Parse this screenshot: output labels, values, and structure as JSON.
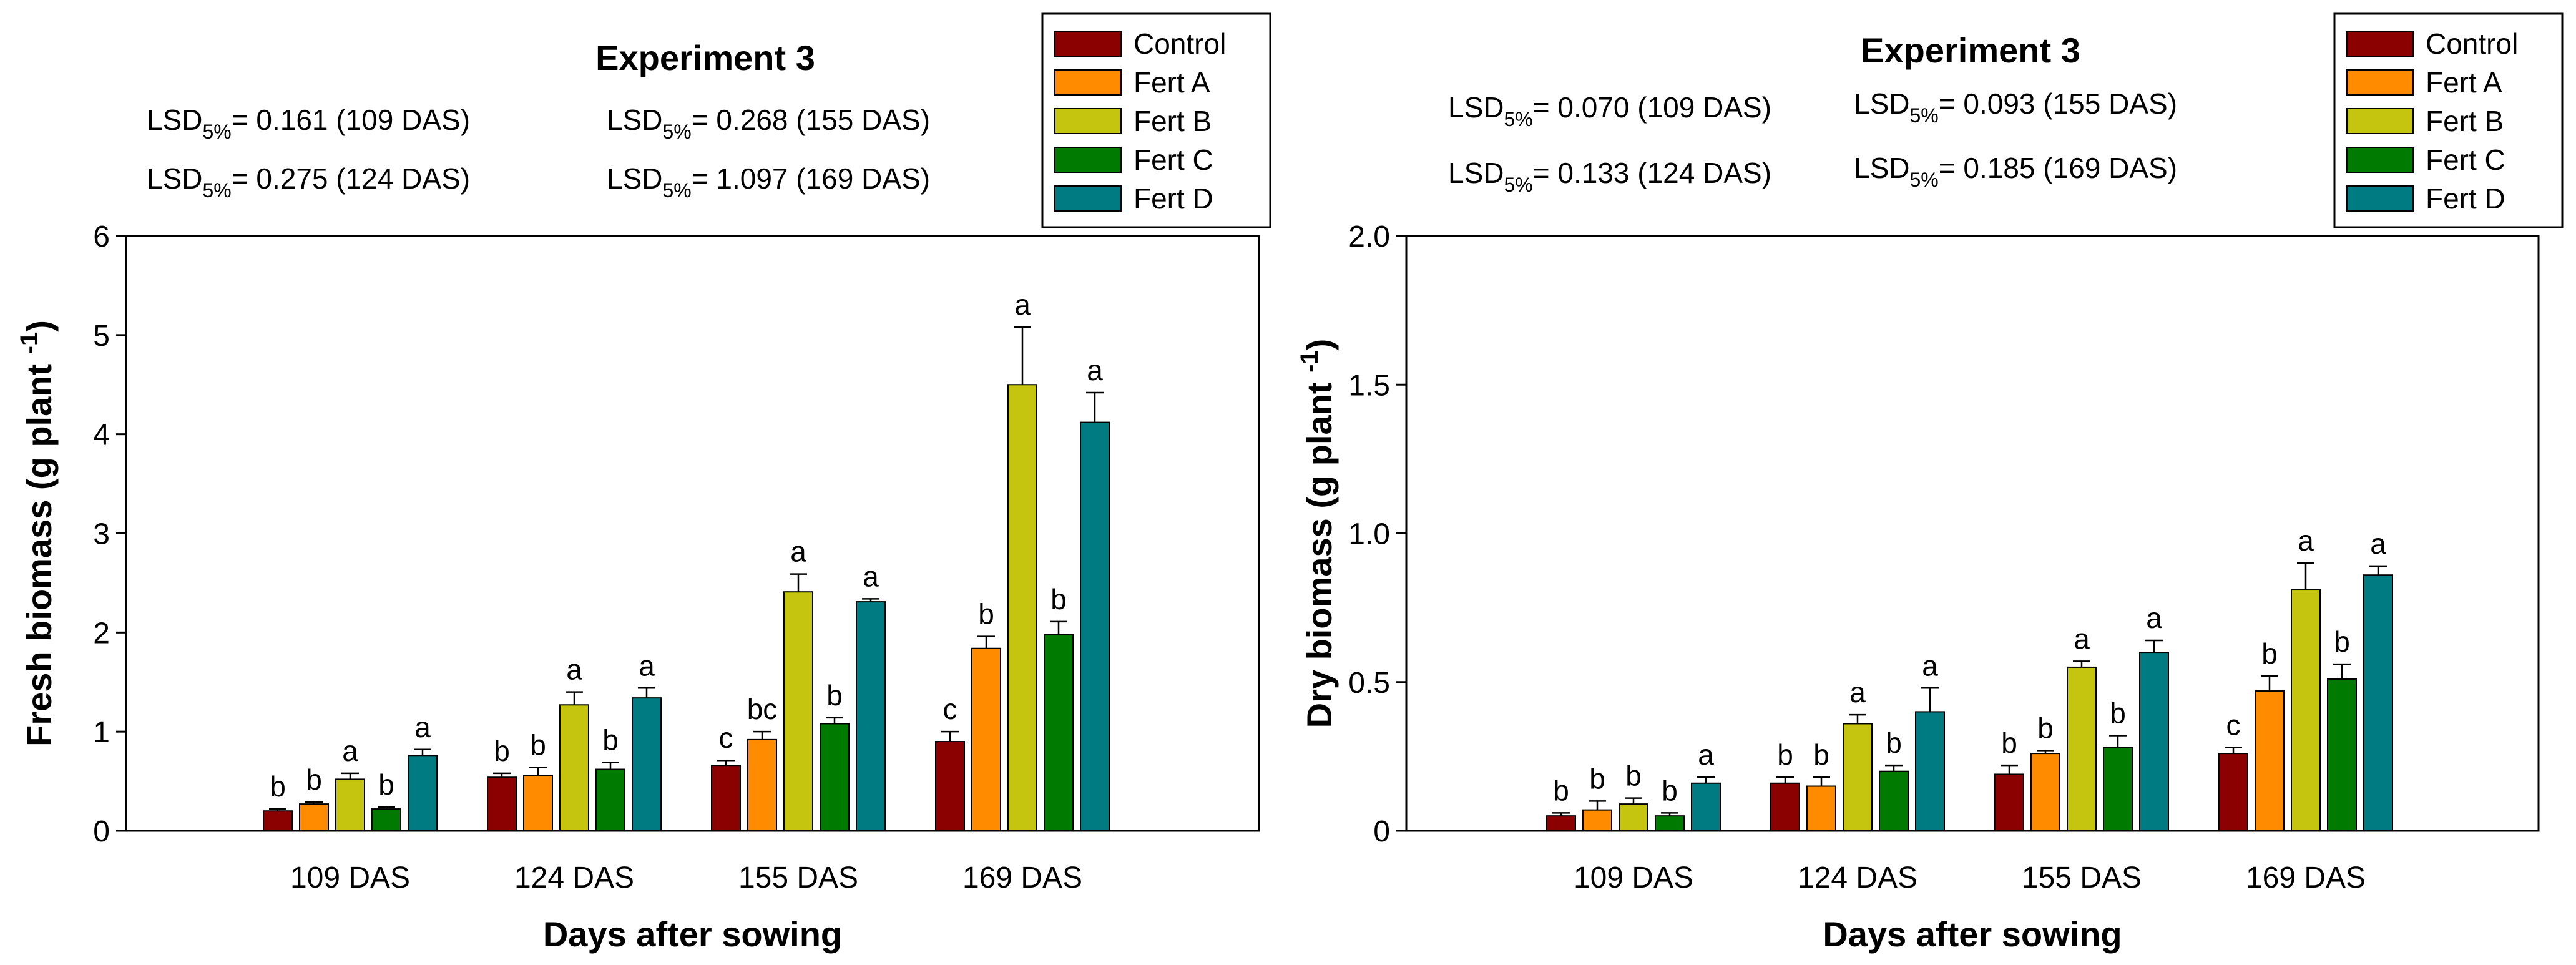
{
  "chart_data": [
    {
      "type": "bar",
      "title": "Experiment 3",
      "xlabel": "Days after sowing",
      "ylabel": "Fresh biomass (g plant",
      "ylabel_sup": "-1",
      "ylabel_close": ")",
      "ylim": [
        0,
        6
      ],
      "yticks": [
        0,
        1,
        2,
        3,
        4,
        5,
        6
      ],
      "ytick_labels": [
        "0",
        "1",
        "2",
        "3",
        "4",
        "5",
        "6"
      ],
      "categories": [
        "109 DAS",
        "124 DAS",
        "155 DAS",
        "169 DAS"
      ],
      "series": [
        {
          "name": "Control",
          "color": "#8b0000",
          "values": [
            0.2,
            0.54,
            0.66,
            0.9
          ],
          "errors": [
            0.02,
            0.04,
            0.05,
            0.1
          ],
          "letters": [
            "b",
            "b",
            "c",
            "c"
          ]
        },
        {
          "name": "Fert A",
          "color": "#ff8c00",
          "values": [
            0.27,
            0.56,
            0.92,
            1.84
          ],
          "errors": [
            0.02,
            0.08,
            0.08,
            0.12
          ],
          "letters": [
            "b",
            "b",
            "bc",
            "b"
          ]
        },
        {
          "name": "Fert B",
          "color": "#c5c50f",
          "values": [
            0.52,
            1.27,
            2.41,
            4.5
          ],
          "errors": [
            0.06,
            0.13,
            0.18,
            0.58
          ],
          "letters": [
            "a",
            "a",
            "a",
            "a"
          ]
        },
        {
          "name": "Fert C",
          "color": "#007a00",
          "values": [
            0.22,
            0.62,
            1.08,
            1.98
          ],
          "errors": [
            0.02,
            0.07,
            0.06,
            0.13
          ],
          "letters": [
            "b",
            "b",
            "b",
            "b"
          ]
        },
        {
          "name": "Fert D",
          "color": "#007b82",
          "values": [
            0.76,
            1.34,
            2.31,
            4.12
          ],
          "errors": [
            0.06,
            0.1,
            0.03,
            0.3
          ],
          "letters": [
            "a",
            "a",
            "a",
            "a"
          ]
        }
      ],
      "annotations": [
        {
          "prefix": "LSD",
          "sub": "5%",
          "text": "= 0.161 (109 DAS)"
        },
        {
          "prefix": "LSD",
          "sub": "5%",
          "text": "= 0.268 (155 DAS)"
        },
        {
          "prefix": "LSD",
          "sub": "5%",
          "text": "= 0.275 (124 DAS)"
        },
        {
          "prefix": "LSD",
          "sub": "5%",
          "text": "= 1.097 (169 DAS)"
        }
      ],
      "legend_position": "top-right"
    },
    {
      "type": "bar",
      "title": "Experiment 3",
      "xlabel": "Days after sowing",
      "ylabel": "Dry biomass (g plant",
      "ylabel_sup": "-1",
      "ylabel_close": ")",
      "ylim": [
        0,
        2
      ],
      "yticks": [
        0,
        0.5,
        1,
        1.5,
        2
      ],
      "ytick_labels": [
        "0",
        "0.5",
        "1.0",
        "1.5",
        "2.0"
      ],
      "categories": [
        "109 DAS",
        "124 DAS",
        "155 DAS",
        "169 DAS"
      ],
      "series": [
        {
          "name": "Control",
          "color": "#8b0000",
          "values": [
            0.05,
            0.16,
            0.19,
            0.26
          ],
          "errors": [
            0.01,
            0.02,
            0.03,
            0.02
          ],
          "letters": [
            "b",
            "b",
            "b",
            "c"
          ]
        },
        {
          "name": "Fert A",
          "color": "#ff8c00",
          "values": [
            0.07,
            0.15,
            0.26,
            0.47
          ],
          "errors": [
            0.03,
            0.03,
            0.01,
            0.05
          ],
          "letters": [
            "b",
            "b",
            "b",
            "b"
          ]
        },
        {
          "name": "Fert B",
          "color": "#c5c50f",
          "values": [
            0.09,
            0.36,
            0.55,
            0.81
          ],
          "errors": [
            0.02,
            0.03,
            0.02,
            0.09
          ],
          "letters": [
            "b",
            "a",
            "a",
            "a"
          ]
        },
        {
          "name": "Fert C",
          "color": "#007a00",
          "values": [
            0.05,
            0.2,
            0.28,
            0.51
          ],
          "errors": [
            0.01,
            0.02,
            0.04,
            0.05
          ],
          "letters": [
            "b",
            "b",
            "b",
            "b"
          ]
        },
        {
          "name": "Fert D",
          "color": "#007b82",
          "values": [
            0.16,
            0.4,
            0.6,
            0.86
          ],
          "errors": [
            0.02,
            0.08,
            0.04,
            0.03
          ],
          "letters": [
            "a",
            "a",
            "a",
            "a"
          ]
        }
      ],
      "annotations": [
        {
          "prefix": "LSD",
          "sub": "5%",
          "text": "= 0.070 (109 DAS)"
        },
        {
          "prefix": "LSD",
          "sub": "5%",
          "text": "= 0.093 (155 DAS)"
        },
        {
          "prefix": "LSD",
          "sub": "5%",
          "text": "= 0.133 (124 DAS)"
        },
        {
          "prefix": "LSD",
          "sub": "5%",
          "text": "= 0.185 (169 DAS)"
        }
      ],
      "legend_position": "top-right"
    }
  ]
}
